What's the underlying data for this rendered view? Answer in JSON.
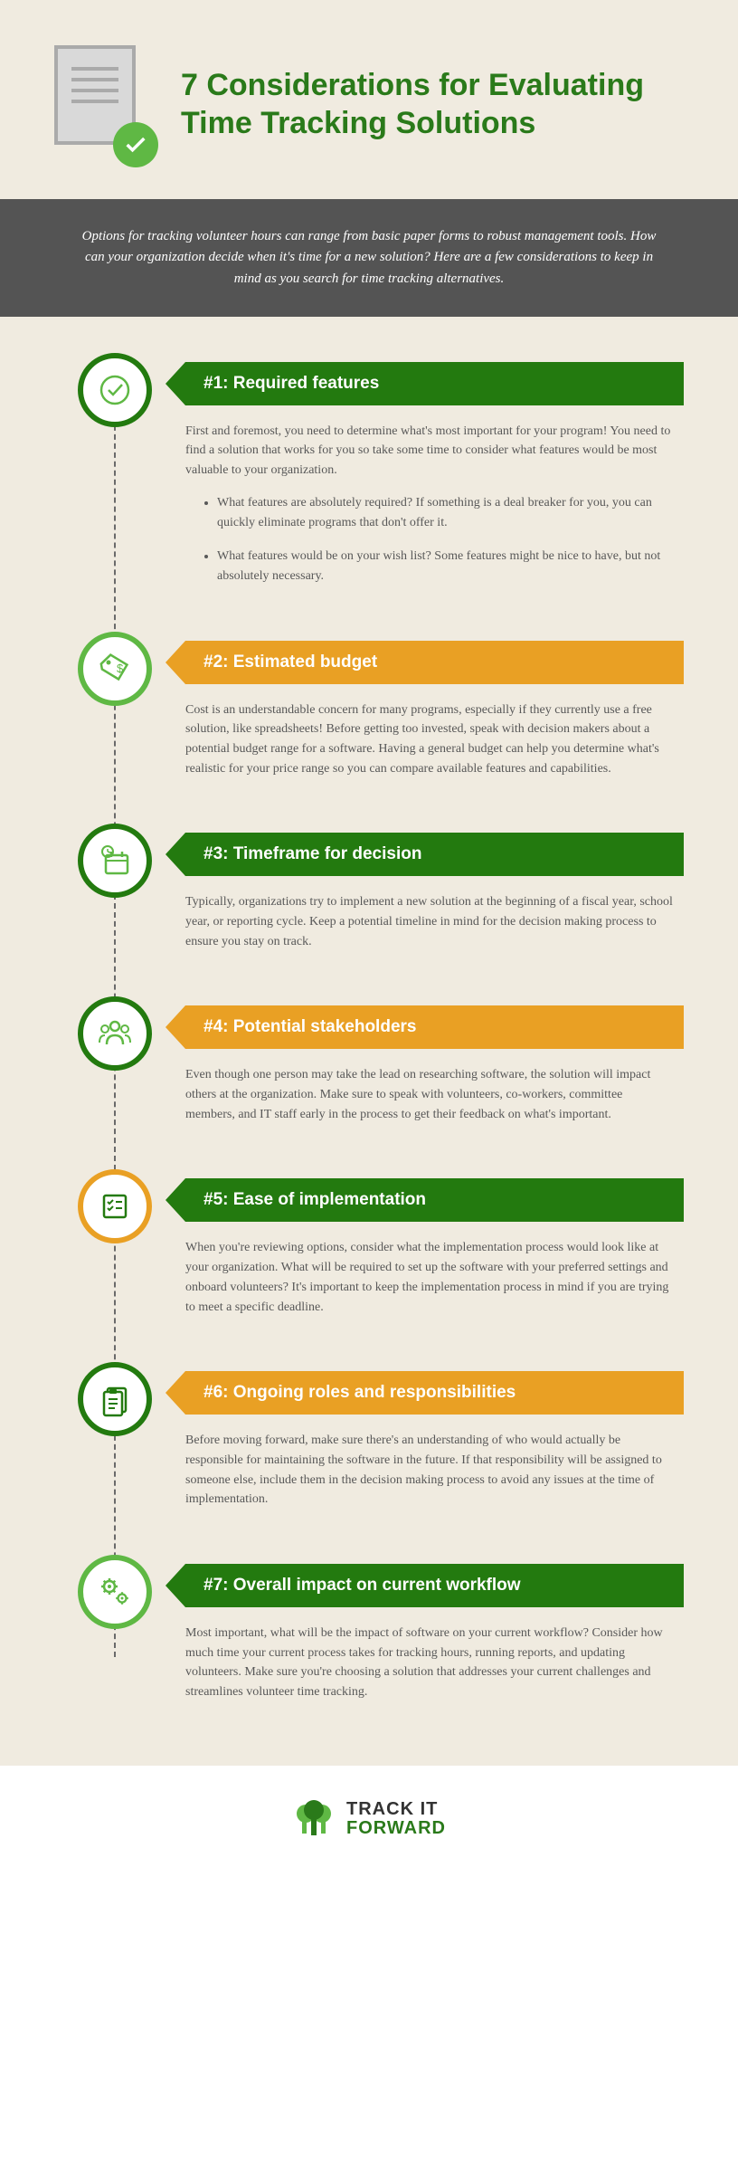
{
  "title": "7 Considerations for Evaluating Time Tracking Solutions",
  "intro": "Options for tracking volunteer hours can range from basic paper forms to robust management tools. How can your organization decide when it's time for a new solution? Here are a few considerations to keep in mind as you search for time tracking alternatives.",
  "colors": {
    "green_dark": "#2a7a1a",
    "green_bar": "#237a0f",
    "green_bright": "#5fb844",
    "orange": "#e9a024",
    "band": "#545454",
    "canvas": "#f0ebe0"
  },
  "items": [
    {
      "heading": "#1: Required features",
      "bar_color": "#237a0f",
      "ring_color": "#237a0f",
      "icon_color": "#5fb844",
      "icon": "check",
      "body": "First and foremost, you need to determine what's most important for your program! You need to find a solution that works for you so take some time to consider what features would be most valuable to your organization.",
      "bullets": [
        "What features are absolutely required? If something is a deal breaker for you, you can quickly eliminate programs that don't offer it.",
        "What features would be on your wish list? Some features might be nice to have, but not absolutely necessary."
      ]
    },
    {
      "heading": "#2: Estimated budget",
      "bar_color": "#e9a024",
      "ring_color": "#5fb844",
      "icon_color": "#5fb844",
      "icon": "tag",
      "body": "Cost is an understandable concern for many programs, especially if they currently use a free solution, like spreadsheets! Before getting too invested, speak with decision makers about a potential budget range for a software. Having a general budget can help you determine what's realistic for your price range so you can compare available features and capabilities."
    },
    {
      "heading": "#3: Timeframe for decision",
      "bar_color": "#237a0f",
      "ring_color": "#237a0f",
      "icon_color": "#5fb844",
      "icon": "calendar",
      "body": "Typically, organizations try to implement a new solution at the beginning of a fiscal year, school year, or reporting cycle. Keep a potential timeline in mind for the decision making process to ensure you stay on track."
    },
    {
      "heading": "#4: Potential stakeholders",
      "bar_color": "#e9a024",
      "ring_color": "#237a0f",
      "icon_color": "#5fb844",
      "icon": "people",
      "body": "Even though one person may take the lead on researching software, the solution will impact others at the organization. Make sure to speak with volunteers, co-workers, committee members, and IT staff early in the process to get their feedback on what's important."
    },
    {
      "heading": "#5: Ease of implementation",
      "bar_color": "#237a0f",
      "ring_color": "#e9a024",
      "icon_color": "#237a0f",
      "icon": "list",
      "body": "When you're reviewing options, consider what the implementation process would look like at your organization. What will be required to set up the software with your preferred settings and onboard volunteers? It's important to keep the implementation process in mind if you are trying to meet a specific deadline."
    },
    {
      "heading": "#6: Ongoing roles and responsibilities",
      "bar_color": "#e9a024",
      "ring_color": "#237a0f",
      "icon_color": "#237a0f",
      "icon": "clipboard",
      "body": "Before moving forward, make sure there's an understanding of who would actually be responsible for maintaining the software in the future. If that responsibility will be assigned to someone else, include them in the decision making process to avoid any issues at the time of implementation."
    },
    {
      "heading": "#7: Overall impact on current workflow",
      "bar_color": "#237a0f",
      "ring_color": "#5fb844",
      "icon_color": "#5fb844",
      "icon": "gears",
      "body": "Most important, what will be the impact of software on your current workflow? Consider how much time your current process takes for tracking hours, running reports, and updating volunteers. Make sure you're choosing a solution that addresses your current challenges and streamlines volunteer time tracking."
    }
  ],
  "footer": {
    "line1": "TRACK IT",
    "line2": "FORWARD"
  }
}
